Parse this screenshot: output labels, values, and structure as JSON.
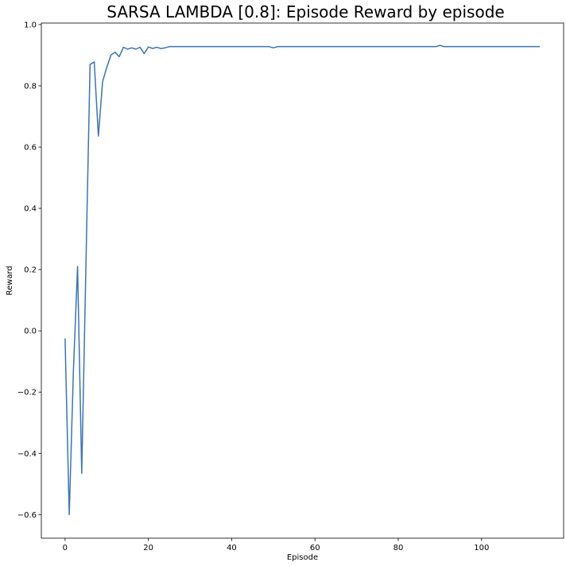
{
  "chart_data": {
    "type": "line",
    "title": "SARSA LAMBDA [0.8]: Episode Reward by episode",
    "xlabel": "Episode",
    "ylabel": "Reward",
    "xlim": [
      -5.7,
      119.7
    ],
    "ylim": [
      -0.677,
      1.005
    ],
    "xticks": [
      0,
      20,
      40,
      60,
      80,
      100
    ],
    "yticks": [
      -0.6,
      -0.4,
      -0.2,
      0.0,
      0.2,
      0.4,
      0.6,
      0.8,
      1.0
    ],
    "xtick_labels": [
      "0",
      "20",
      "40",
      "60",
      "80",
      "100"
    ],
    "ytick_labels": [
      "−0.6",
      "−0.4",
      "−0.2",
      "0.0",
      "0.2",
      "0.4",
      "0.6",
      "0.8",
      "1.0"
    ],
    "grid": false,
    "series": [
      {
        "color": "#3a75b0",
        "x": [
          0,
          1,
          2,
          3,
          4,
          5,
          6,
          7,
          8,
          9,
          10,
          11,
          12,
          13,
          14,
          15,
          16,
          17,
          18,
          19,
          20,
          21,
          22,
          23,
          24,
          25,
          26,
          30,
          40,
          49,
          50,
          51,
          52,
          60,
          70,
          80,
          89,
          90,
          91,
          100,
          110,
          114
        ],
        "y": [
          -0.025,
          -0.6,
          -0.13,
          0.21,
          -0.465,
          0.21,
          0.87,
          0.878,
          0.636,
          0.813,
          0.86,
          0.9,
          0.91,
          0.895,
          0.926,
          0.92,
          0.924,
          0.92,
          0.926,
          0.905,
          0.927,
          0.922,
          0.926,
          0.922,
          0.924,
          0.928,
          0.928,
          0.928,
          0.928,
          0.928,
          0.924,
          0.928,
          0.928,
          0.928,
          0.928,
          0.928,
          0.928,
          0.932,
          0.928,
          0.928,
          0.928,
          0.928
        ]
      }
    ]
  }
}
